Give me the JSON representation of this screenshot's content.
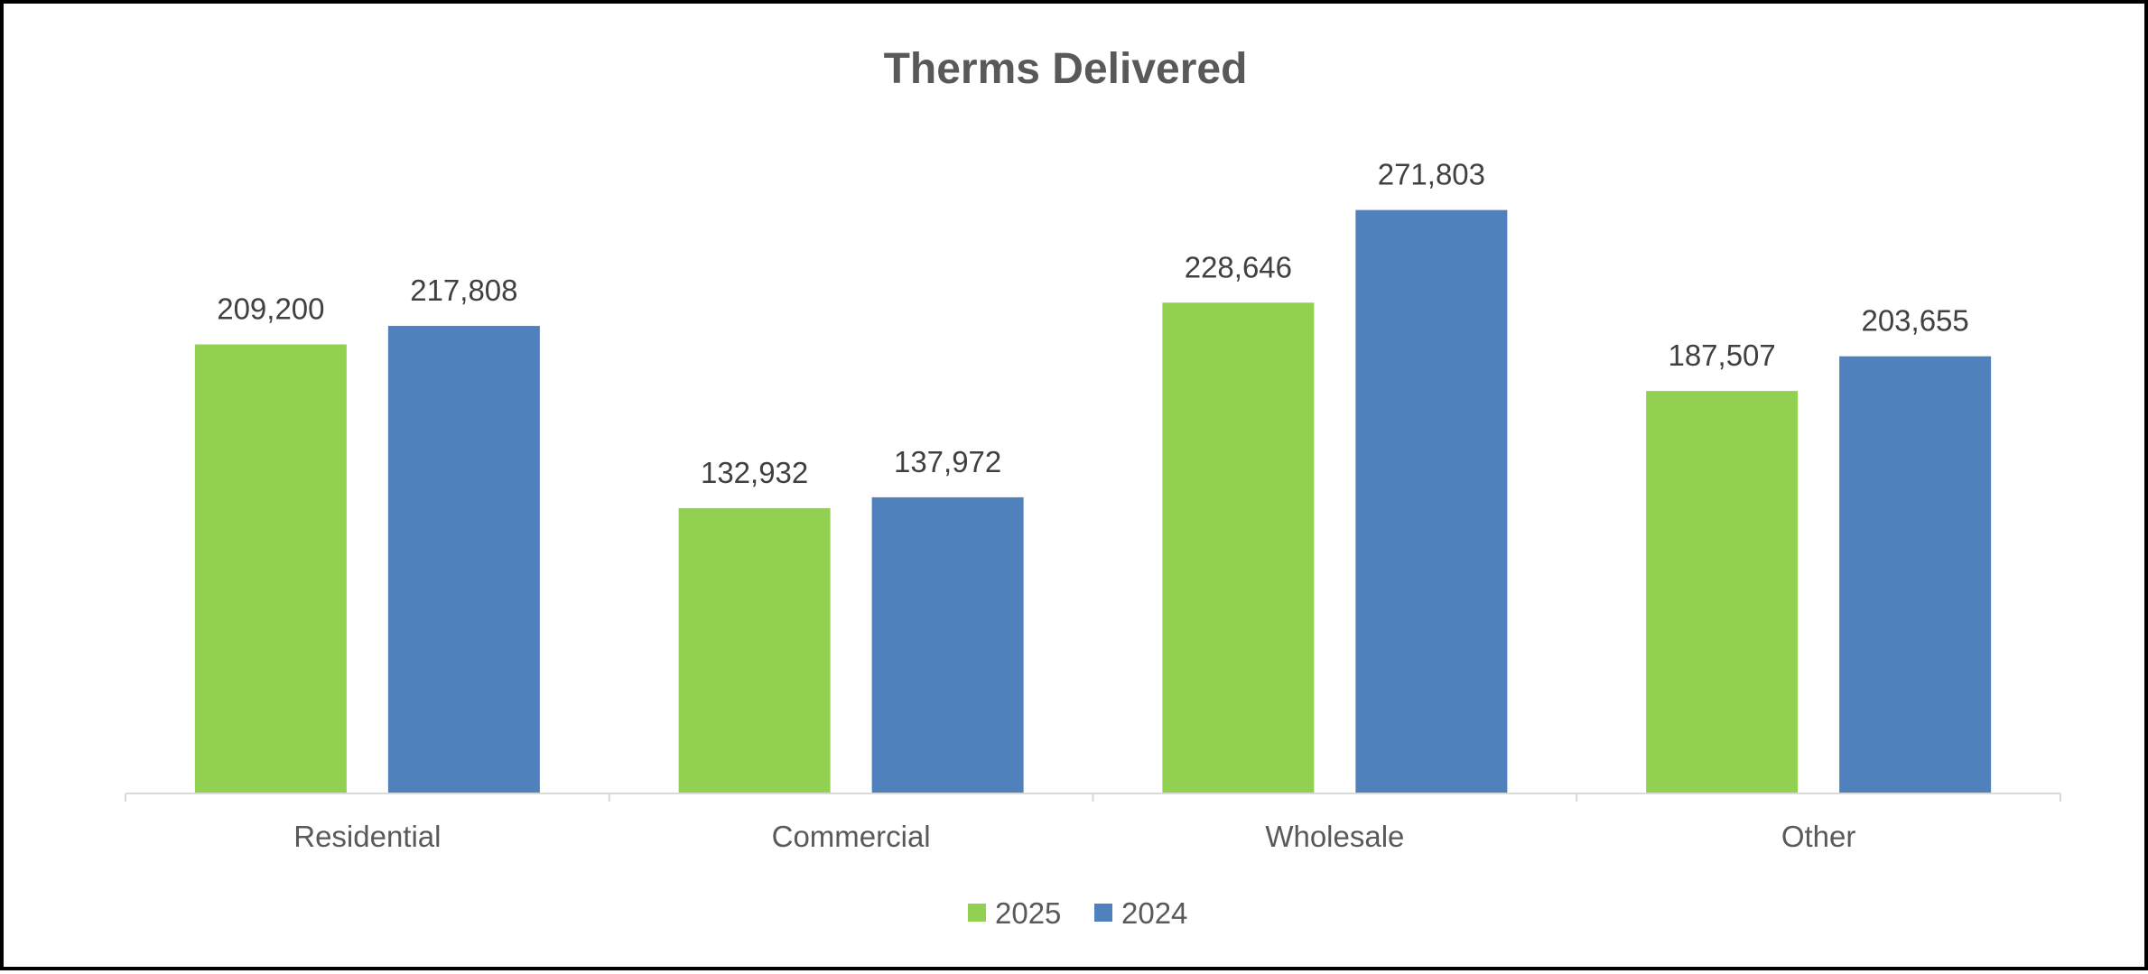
{
  "chart_data": {
    "type": "bar",
    "title": "Therms Delivered",
    "categories": [
      "Residential",
      "Commercial",
      "Wholesale",
      "Other"
    ],
    "series": [
      {
        "name": "2025",
        "color": "#92D050",
        "values": [
          209200,
          132932,
          228646,
          187507
        ],
        "labels": [
          "209,200",
          "132,932",
          "228,646",
          "187,507"
        ]
      },
      {
        "name": "2024",
        "color": "#4F81BD",
        "values": [
          217808,
          137972,
          271803,
          203655
        ],
        "labels": [
          "217,808",
          "137,972",
          "271,803",
          "203,655"
        ]
      }
    ],
    "ylim": [
      0,
      300000
    ],
    "grid": false,
    "legend": "bottom-center",
    "xlabel": "",
    "ylabel": ""
  }
}
